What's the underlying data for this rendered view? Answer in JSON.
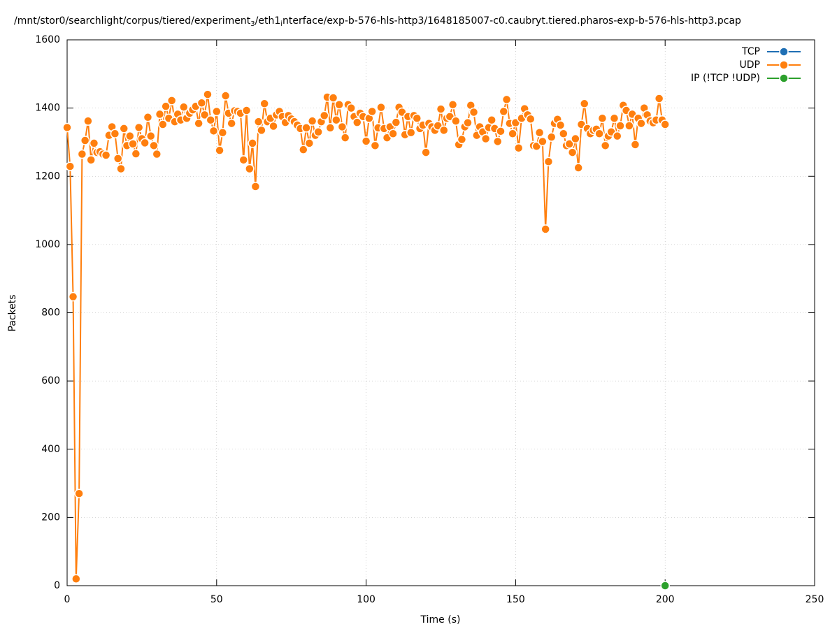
{
  "chart_data": {
    "type": "line",
    "title": [
      "/mnt/stor0/searchlight/corpus/tiered/experiment",
      "3",
      "/eth1",
      "i",
      "nterface/exp-b-576-hls-http3/1648185007-c0.caubryt.tiered.pharos-exp-b-576-hls-http3.pcap"
    ],
    "xlabel": "Time (s)",
    "ylabel": "Packets",
    "xlim": [
      0,
      250
    ],
    "xticks": [
      0,
      50,
      100,
      150,
      200,
      250
    ],
    "ylim": [
      0,
      1600
    ],
    "yticks": [
      0,
      200,
      400,
      600,
      800,
      1000,
      1200,
      1400,
      1600
    ],
    "grid": true,
    "legend": "top-right",
    "series": [
      {
        "name": "TCP",
        "color": "#1f6fb4",
        "x": [],
        "values": []
      },
      {
        "name": "UDP",
        "color": "#ff7f0e",
        "x": [
          0,
          1,
          2,
          3,
          4,
          5,
          6,
          7,
          8,
          9,
          10,
          11,
          12,
          13,
          14,
          15,
          16,
          17,
          18,
          19,
          20,
          21,
          22,
          23,
          24,
          25,
          26,
          27,
          28,
          29,
          30,
          31,
          32,
          33,
          34,
          35,
          36,
          37,
          38,
          39,
          40,
          41,
          42,
          43,
          44,
          45,
          46,
          47,
          48,
          49,
          50,
          51,
          52,
          53,
          54,
          55,
          56,
          57,
          58,
          59,
          60,
          61,
          62,
          63,
          64,
          65,
          66,
          67,
          68,
          69,
          70,
          71,
          72,
          73,
          74,
          75,
          76,
          77,
          78,
          79,
          80,
          81,
          82,
          83,
          84,
          85,
          86,
          87,
          88,
          89,
          90,
          91,
          92,
          93,
          94,
          95,
          96,
          97,
          98,
          99,
          100,
          101,
          102,
          103,
          104,
          105,
          106,
          107,
          108,
          109,
          110,
          111,
          112,
          113,
          114,
          115,
          116,
          117,
          118,
          119,
          120,
          121,
          122,
          123,
          124,
          125,
          126,
          127,
          128,
          129,
          130,
          131,
          132,
          133,
          134,
          135,
          136,
          137,
          138,
          139,
          140,
          141,
          142,
          143,
          144,
          145,
          146,
          147,
          148,
          149,
          150,
          151,
          152,
          153,
          154,
          155,
          156,
          157,
          158,
          159,
          160,
          161,
          162,
          163,
          164,
          165,
          166,
          167,
          168,
          169,
          170,
          171,
          172,
          173,
          174,
          175,
          176,
          177,
          178,
          179,
          180,
          181,
          182,
          183,
          184,
          185,
          186,
          187,
          188,
          189,
          190,
          191,
          192,
          193,
          194,
          195,
          196,
          197,
          198,
          199,
          200
        ],
        "values": [
          1343,
          1229,
          847,
          20,
          270,
          1265,
          1305,
          1362,
          1248,
          1297,
          1270,
          1272,
          1265,
          1262,
          1320,
          1345,
          1325,
          1252,
          1222,
          1340,
          1290,
          1318,
          1295,
          1266,
          1343,
          1310,
          1298,
          1373,
          1318,
          1290,
          1265,
          1382,
          1352,
          1405,
          1370,
          1422,
          1360,
          1382,
          1365,
          1403,
          1370,
          1385,
          1395,
          1405,
          1355,
          1415,
          1380,
          1440,
          1365,
          1333,
          1390,
          1276,
          1328,
          1436,
          1385,
          1355,
          1392,
          1390,
          1385,
          1248,
          1393,
          1222,
          1297,
          1170,
          1360,
          1335,
          1413,
          1360,
          1370,
          1347,
          1380,
          1390,
          1375,
          1358,
          1378,
          1368,
          1360,
          1350,
          1340,
          1278,
          1342,
          1297,
          1362,
          1320,
          1330,
          1360,
          1378,
          1432,
          1342,
          1430,
          1365,
          1410,
          1345,
          1313,
          1410,
          1400,
          1375,
          1358,
          1385,
          1375,
          1303,
          1370,
          1390,
          1290,
          1342,
          1402,
          1340,
          1313,
          1345,
          1325,
          1358,
          1402,
          1388,
          1322,
          1375,
          1328,
          1378,
          1370,
          1340,
          1350,
          1270,
          1355,
          1345,
          1335,
          1348,
          1397,
          1335,
          1370,
          1375,
          1410,
          1362,
          1293,
          1308,
          1345,
          1357,
          1408,
          1388,
          1320,
          1345,
          1330,
          1310,
          1343,
          1365,
          1340,
          1302,
          1332,
          1390,
          1425,
          1355,
          1325,
          1357,
          1283,
          1370,
          1398,
          1380,
          1368,
          1290,
          1288,
          1328,
          1302,
          1045,
          1243,
          1315,
          1355,
          1367,
          1350,
          1325,
          1290,
          1295,
          1270,
          1310,
          1225,
          1352,
          1413,
          1340,
          1325,
          1335,
          1338,
          1325,
          1370,
          1290,
          1318,
          1330,
          1370,
          1318,
          1348,
          1408,
          1393,
          1348,
          1382,
          1293,
          1370,
          1355,
          1400,
          1380,
          1362,
          1357,
          1365,
          1428,
          1365,
          1352
        ]
      },
      {
        "name": "IP (!TCP  !UDP)",
        "color": "#2ca02c",
        "x": [
          200
        ],
        "values": [
          0
        ]
      }
    ]
  }
}
